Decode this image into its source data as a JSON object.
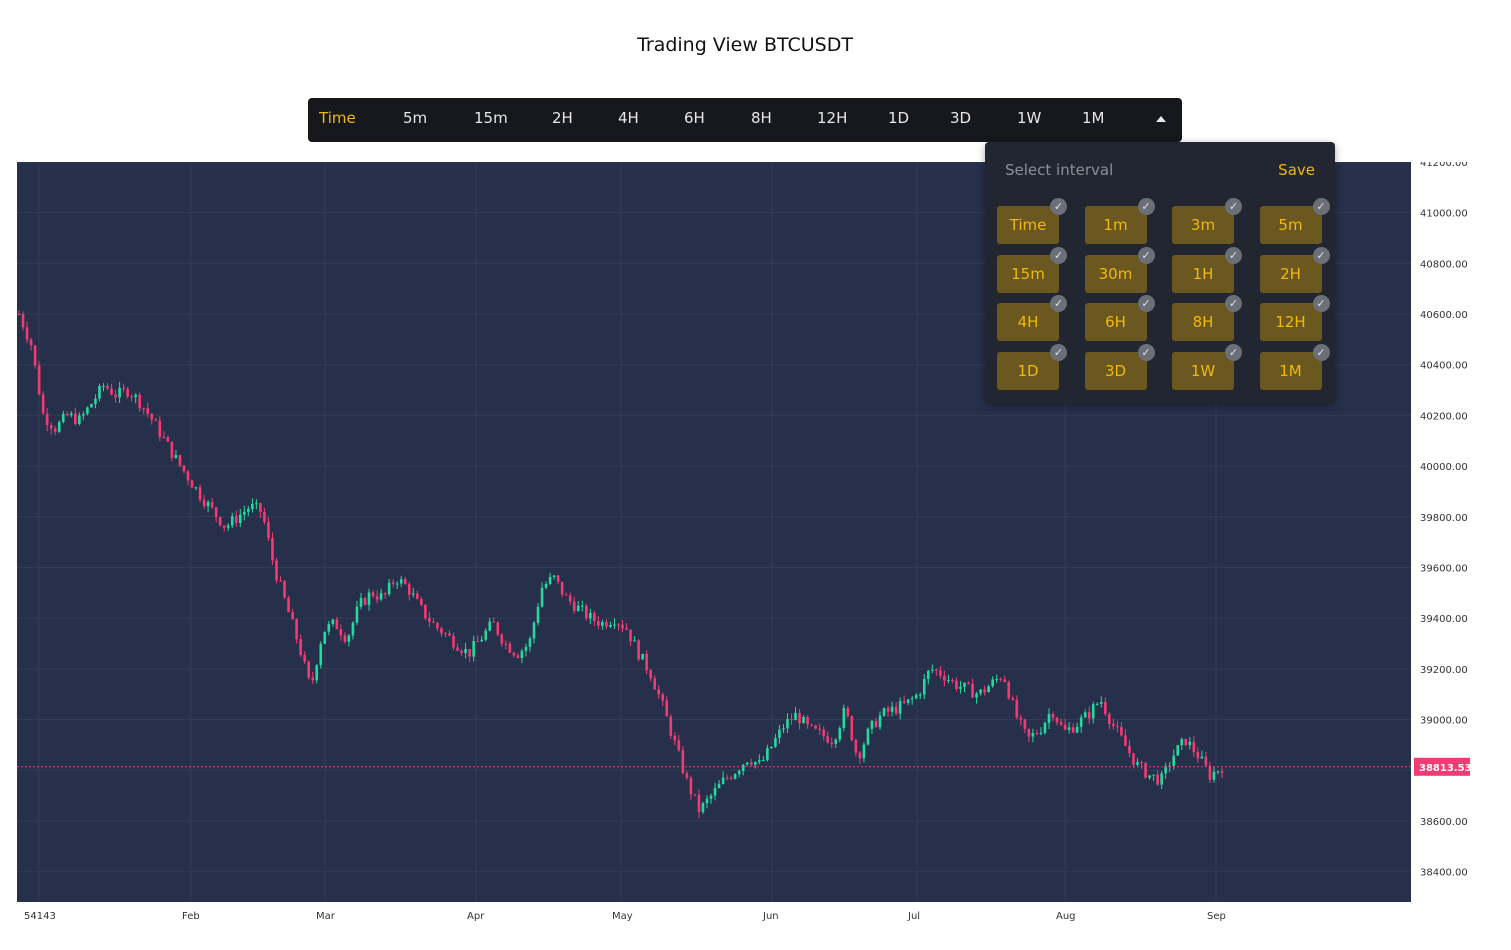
{
  "page": {
    "title": "Trading View BTCUSDT"
  },
  "toolbar": {
    "items": [
      "Time",
      "5m",
      "15m",
      "2H",
      "4H",
      "6H",
      "8H",
      "12H",
      "1D",
      "3D",
      "1W",
      "1M"
    ],
    "active": "Time"
  },
  "interval_popup": {
    "title": "Select interval",
    "save_label": "Save",
    "options": [
      "Time",
      "1m",
      "3m",
      "5m",
      "15m",
      "30m",
      "1H",
      "2H",
      "4H",
      "6H",
      "8H",
      "12H",
      "1D",
      "3D",
      "1W",
      "1M"
    ],
    "check_icon": "check-icon"
  },
  "colors": {
    "background": "#26304a",
    "up": "#26d9a0",
    "down": "#f23a75",
    "accent": "#f0b90b",
    "price_label": "#f23a75"
  },
  "chart_data": {
    "type": "candlestick",
    "title": "",
    "current_price": 38813.53,
    "current_price_label": "38813.53",
    "ylim": [
      38280,
      41200
    ],
    "y_ticks": [
      "38400.00",
      "38600.00",
      "38800.00",
      "39000.00",
      "39200.00",
      "39400.00",
      "39600.00",
      "39800.00",
      "40000.00",
      "40200.00",
      "40400.00",
      "40600.00",
      "40800.00",
      "41000.00",
      "41200.00"
    ],
    "x_labels": [
      "54143",
      "Feb",
      "Mar",
      "Apr",
      "May",
      "Jun",
      "Jul",
      "Aug",
      "Sep"
    ],
    "grid": true,
    "series": [
      {
        "x": 0,
        "close": 40600
      },
      {
        "x": 4,
        "close": 40480
      },
      {
        "x": 8,
        "close": 40200
      },
      {
        "x": 12,
        "close": 40150
      },
      {
        "x": 16,
        "close": 40200
      },
      {
        "x": 20,
        "close": 40180
      },
      {
        "x": 24,
        "close": 40250
      },
      {
        "x": 28,
        "close": 40320
      },
      {
        "x": 32,
        "close": 40280
      },
      {
        "x": 36,
        "close": 40300
      },
      {
        "x": 40,
        "close": 40250
      },
      {
        "x": 44,
        "close": 40180
      },
      {
        "x": 48,
        "close": 40100
      },
      {
        "x": 52,
        "close": 40020
      },
      {
        "x": 56,
        "close": 39950
      },
      {
        "x": 60,
        "close": 39880
      },
      {
        "x": 64,
        "close": 39820
      },
      {
        "x": 68,
        "close": 39760
      },
      {
        "x": 72,
        "close": 39800
      },
      {
        "x": 76,
        "close": 39840
      },
      {
        "x": 80,
        "close": 39820
      },
      {
        "x": 84,
        "close": 39600
      },
      {
        "x": 88,
        "close": 39450
      },
      {
        "x": 92,
        "close": 39300
      },
      {
        "x": 96,
        "close": 39120
      },
      {
        "x": 100,
        "close": 39350
      },
      {
        "x": 104,
        "close": 39380
      },
      {
        "x": 108,
        "close": 39320
      },
      {
        "x": 112,
        "close": 39450
      },
      {
        "x": 116,
        "close": 39500
      },
      {
        "x": 120,
        "close": 39480
      },
      {
        "x": 124,
        "close": 39560
      },
      {
        "x": 128,
        "close": 39520
      },
      {
        "x": 132,
        "close": 39440
      },
      {
        "x": 136,
        "close": 39380
      },
      {
        "x": 140,
        "close": 39340
      },
      {
        "x": 144,
        "close": 39300
      },
      {
        "x": 148,
        "close": 39260
      },
      {
        "x": 152,
        "close": 39320
      },
      {
        "x": 156,
        "close": 39380
      },
      {
        "x": 160,
        "close": 39300
      },
      {
        "x": 164,
        "close": 39260
      },
      {
        "x": 168,
        "close": 39300
      },
      {
        "x": 172,
        "close": 39520
      },
      {
        "x": 176,
        "close": 39560
      },
      {
        "x": 180,
        "close": 39480
      },
      {
        "x": 184,
        "close": 39440
      },
      {
        "x": 188,
        "close": 39400
      },
      {
        "x": 192,
        "close": 39380
      },
      {
        "x": 196,
        "close": 39400
      },
      {
        "x": 200,
        "close": 39360
      },
      {
        "x": 204,
        "close": 39260
      },
      {
        "x": 208,
        "close": 39180
      },
      {
        "x": 212,
        "close": 39050
      },
      {
        "x": 216,
        "close": 38900
      },
      {
        "x": 220,
        "close": 38750
      },
      {
        "x": 224,
        "close": 38640
      },
      {
        "x": 228,
        "close": 38700
      },
      {
        "x": 232,
        "close": 38760
      },
      {
        "x": 236,
        "close": 38800
      },
      {
        "x": 240,
        "close": 38850
      },
      {
        "x": 244,
        "close": 38820
      },
      {
        "x": 248,
        "close": 38900
      },
      {
        "x": 252,
        "close": 38980
      },
      {
        "x": 256,
        "close": 39020
      },
      {
        "x": 260,
        "close": 38960
      },
      {
        "x": 264,
        "close": 38940
      },
      {
        "x": 268,
        "close": 38920
      },
      {
        "x": 272,
        "close": 39040
      },
      {
        "x": 276,
        "close": 38850
      },
      {
        "x": 280,
        "close": 38960
      },
      {
        "x": 284,
        "close": 39020
      },
      {
        "x": 288,
        "close": 39040
      },
      {
        "x": 292,
        "close": 39060
      },
      {
        "x": 296,
        "close": 39100
      },
      {
        "x": 300,
        "close": 39200
      },
      {
        "x": 304,
        "close": 39180
      },
      {
        "x": 308,
        "close": 39140
      },
      {
        "x": 312,
        "close": 39120
      },
      {
        "x": 316,
        "close": 39100
      },
      {
        "x": 320,
        "close": 39140
      },
      {
        "x": 324,
        "close": 39180
      },
      {
        "x": 328,
        "close": 39020
      },
      {
        "x": 332,
        "close": 38920
      },
      {
        "x": 336,
        "close": 38960
      },
      {
        "x": 340,
        "close": 39040
      },
      {
        "x": 344,
        "close": 38950
      },
      {
        "x": 348,
        "close": 38980
      },
      {
        "x": 352,
        "close": 39020
      },
      {
        "x": 356,
        "close": 39080
      },
      {
        "x": 360,
        "close": 38980
      },
      {
        "x": 364,
        "close": 38900
      },
      {
        "x": 368,
        "close": 38820
      },
      {
        "x": 372,
        "close": 38780
      },
      {
        "x": 376,
        "close": 38760
      },
      {
        "x": 380,
        "close": 38860
      },
      {
        "x": 384,
        "close": 38920
      },
      {
        "x": 388,
        "close": 38860
      },
      {
        "x": 392,
        "close": 38780
      },
      {
        "x": 396,
        "close": 38813.53
      }
    ]
  }
}
